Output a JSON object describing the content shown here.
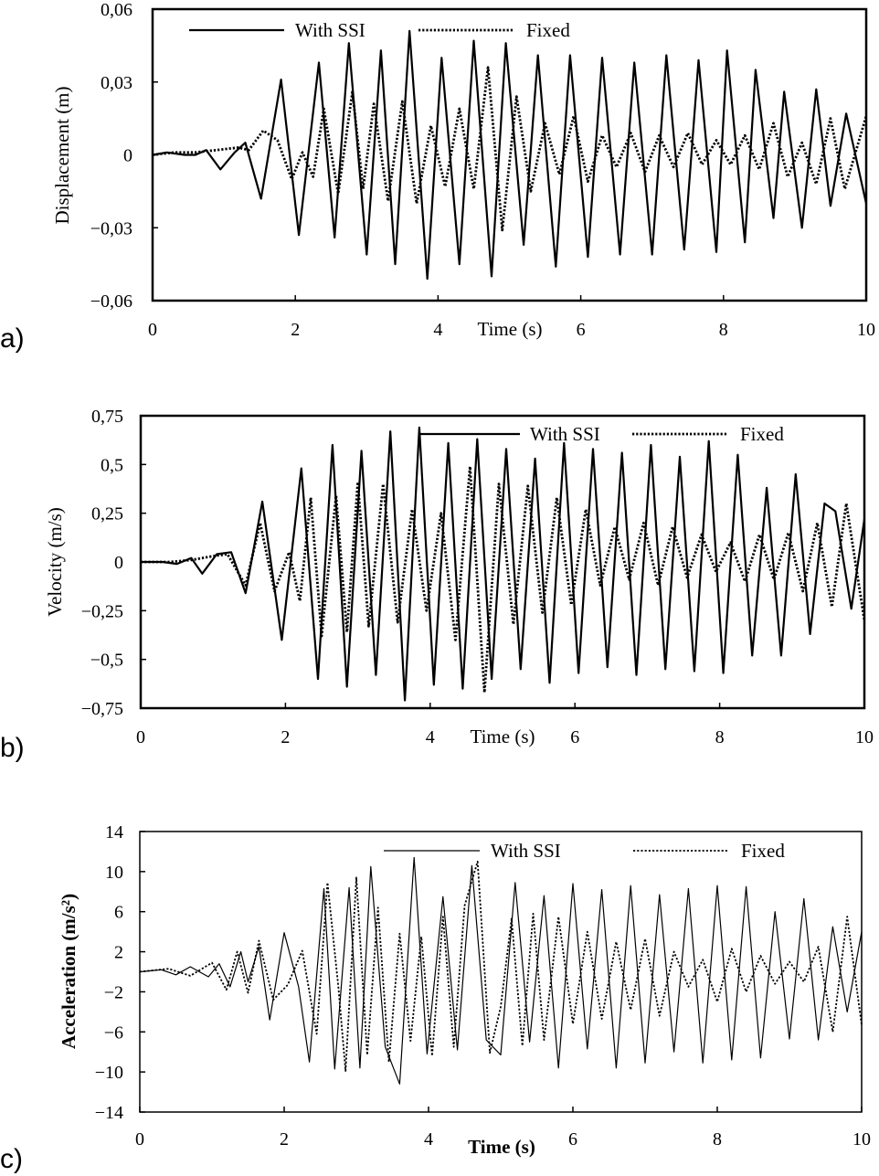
{
  "chart_data": [
    {
      "type": "line",
      "panel_label": "a)",
      "xlabel": "Time (s)",
      "ylabel": "Displacement (m)",
      "xlim": [
        0,
        10
      ],
      "ylim": [
        -0.06,
        0.06
      ],
      "x_ticks": [
        0,
        2,
        4,
        6,
        8,
        10
      ],
      "x_tick_labels": [
        "0",
        "2",
        "4",
        "6",
        "8",
        "10"
      ],
      "y_ticks": [
        -0.06,
        -0.03,
        0,
        0.03,
        0.06
      ],
      "y_tick_labels": [
        "-0,06",
        "-0,03",
        "0",
        "0,03",
        "0,06"
      ],
      "grid": false,
      "legend_position": "top",
      "series": [
        {
          "name": "With SSI",
          "style": "solid",
          "x": [
            0,
            0.2,
            0.45,
            0.6,
            0.75,
            0.95,
            1.15,
            1.3,
            1.52,
            1.8,
            2.05,
            2.33,
            2.55,
            2.75,
            3.0,
            3.2,
            3.4,
            3.6,
            3.85,
            4.05,
            4.3,
            4.5,
            4.75,
            4.95,
            5.2,
            5.4,
            5.65,
            5.85,
            6.1,
            6.3,
            6.55,
            6.75,
            7.0,
            7.2,
            7.45,
            7.65,
            7.9,
            8.05,
            8.3,
            8.45,
            8.7,
            8.85,
            9.1,
            9.3,
            9.5,
            9.72,
            10.0
          ],
          "y": [
            0,
            0.001,
            0,
            0,
            0.002,
            -0.006,
            0.001,
            0.005,
            -0.018,
            0.031,
            -0.033,
            0.038,
            -0.034,
            0.046,
            -0.041,
            0.043,
            -0.045,
            0.051,
            -0.051,
            0.04,
            -0.045,
            0.047,
            -0.05,
            0.046,
            -0.037,
            0.041,
            -0.046,
            0.041,
            -0.042,
            0.04,
            -0.041,
            0.038,
            -0.041,
            0.041,
            -0.039,
            0.039,
            -0.04,
            0.043,
            -0.036,
            0.035,
            -0.026,
            0.026,
            -0.03,
            0.027,
            -0.021,
            0.017,
            -0.02
          ]
        },
        {
          "name": "Fixed",
          "style": "dotted",
          "x": [
            0,
            0.3,
            0.6,
            0.9,
            1.2,
            1.35,
            1.55,
            1.75,
            1.95,
            2.1,
            2.25,
            2.4,
            2.6,
            2.8,
            2.95,
            3.1,
            3.3,
            3.5,
            3.7,
            3.9,
            4.1,
            4.3,
            4.5,
            4.7,
            4.9,
            5.1,
            5.3,
            5.5,
            5.7,
            5.9,
            6.1,
            6.3,
            6.5,
            6.7,
            6.9,
            7.1,
            7.3,
            7.5,
            7.7,
            7.9,
            8.1,
            8.3,
            8.5,
            8.7,
            8.9,
            9.1,
            9.3,
            9.5,
            9.7,
            10.0
          ],
          "y": [
            0,
            0.001,
            0.001,
            0.002,
            0.003,
            0.002,
            0.01,
            0.006,
            -0.01,
            0.001,
            -0.009,
            0.019,
            -0.016,
            0.026,
            -0.014,
            0.021,
            -0.019,
            0.022,
            -0.02,
            0.012,
            -0.013,
            0.019,
            -0.014,
            0.036,
            -0.031,
            0.024,
            -0.015,
            0.013,
            -0.008,
            0.016,
            -0.011,
            0.008,
            -0.005,
            0.009,
            -0.007,
            0.008,
            -0.005,
            0.009,
            -0.004,
            0.006,
            -0.004,
            0.008,
            -0.006,
            0.013,
            -0.009,
            0.005,
            -0.012,
            0.015,
            -0.014,
            0.016
          ]
        }
      ]
    },
    {
      "type": "line",
      "panel_label": "b)",
      "xlabel": "Time (s)",
      "ylabel": "Velocity (m/s)",
      "xlim": [
        0,
        10
      ],
      "ylim": [
        -0.75,
        0.75
      ],
      "x_ticks": [
        0,
        2,
        4,
        6,
        8,
        10
      ],
      "x_tick_labels": [
        "0",
        "2",
        "4",
        "6",
        "8",
        "10"
      ],
      "y_ticks": [
        -0.75,
        -0.5,
        -0.25,
        0,
        0.25,
        0.5,
        0.75
      ],
      "y_tick_labels": [
        "-0,75",
        "-0,5",
        "-0,25",
        "0",
        "0,25",
        "0,5",
        "0,75"
      ],
      "grid": false,
      "legend_position": "top-right",
      "series": [
        {
          "name": "With SSI",
          "style": "solid",
          "x": [
            0,
            0.3,
            0.5,
            0.7,
            0.85,
            1.05,
            1.25,
            1.45,
            1.68,
            1.95,
            2.22,
            2.45,
            2.65,
            2.85,
            3.05,
            3.25,
            3.45,
            3.65,
            3.85,
            4.05,
            4.25,
            4.45,
            4.65,
            4.85,
            5.05,
            5.25,
            5.45,
            5.65,
            5.85,
            6.05,
            6.25,
            6.45,
            6.65,
            6.85,
            7.05,
            7.25,
            7.45,
            7.65,
            7.85,
            8.05,
            8.25,
            8.45,
            8.65,
            8.85,
            9.05,
            9.25,
            9.45,
            9.6,
            9.82,
            10.0
          ],
          "y": [
            0,
            0,
            -0.01,
            0.02,
            -0.06,
            0.04,
            0.05,
            -0.16,
            0.31,
            -0.4,
            0.48,
            -0.6,
            0.6,
            -0.64,
            0.57,
            -0.58,
            0.67,
            -0.71,
            0.69,
            -0.63,
            0.61,
            -0.65,
            0.63,
            -0.6,
            0.58,
            -0.55,
            0.53,
            -0.62,
            0.61,
            -0.57,
            0.58,
            -0.54,
            0.56,
            -0.58,
            0.6,
            -0.55,
            0.54,
            -0.56,
            0.62,
            -0.57,
            0.55,
            -0.48,
            0.38,
            -0.48,
            0.45,
            -0.37,
            0.3,
            0.26,
            -0.24,
            0.22
          ]
        },
        {
          "name": "Fixed",
          "style": "dotted",
          "x": [
            0,
            0.4,
            0.7,
            1.0,
            1.2,
            1.45,
            1.65,
            1.85,
            2.05,
            2.2,
            2.35,
            2.5,
            2.7,
            2.85,
            3.0,
            3.15,
            3.35,
            3.55,
            3.75,
            3.95,
            4.15,
            4.35,
            4.55,
            4.75,
            4.95,
            5.15,
            5.35,
            5.55,
            5.75,
            5.95,
            6.15,
            6.35,
            6.55,
            6.75,
            6.95,
            7.15,
            7.35,
            7.55,
            7.75,
            7.95,
            8.15,
            8.35,
            8.55,
            8.75,
            8.95,
            9.15,
            9.35,
            9.55,
            9.75,
            10.0
          ],
          "y": [
            0,
            0,
            0.01,
            0.03,
            0.04,
            -0.12,
            0.2,
            -0.15,
            0.05,
            -0.2,
            0.33,
            -0.38,
            0.34,
            -0.36,
            0.41,
            -0.33,
            0.4,
            -0.31,
            0.27,
            -0.25,
            0.25,
            -0.4,
            0.49,
            -0.67,
            0.4,
            -0.32,
            0.39,
            -0.26,
            0.33,
            -0.22,
            0.27,
            -0.12,
            0.18,
            -0.09,
            0.2,
            -0.12,
            0.18,
            -0.08,
            0.14,
            -0.05,
            0.1,
            -0.1,
            0.14,
            -0.09,
            0.15,
            -0.15,
            0.2,
            -0.23,
            0.3,
            -0.3
          ]
        }
      ]
    },
    {
      "type": "line",
      "panel_label": "c)",
      "xlabel": "Time (s)",
      "ylabel": "Acceleration (m/s²)",
      "xlim": [
        0,
        10
      ],
      "ylim": [
        -14,
        14
      ],
      "x_ticks": [
        0,
        2,
        4,
        6,
        8,
        10
      ],
      "x_tick_labels": [
        "0",
        "2",
        "4",
        "6",
        "8",
        "10"
      ],
      "y_ticks": [
        -14,
        -10,
        -6,
        -2,
        2,
        6,
        10,
        14
      ],
      "y_tick_labels": [
        "-14",
        "-10",
        "-6",
        "-2",
        "2",
        "6",
        "10",
        "14"
      ],
      "grid": false,
      "legend_position": "top",
      "series": [
        {
          "name": "With SSI",
          "style": "solid",
          "x": [
            0,
            0.3,
            0.5,
            0.7,
            0.95,
            1.1,
            1.25,
            1.4,
            1.5,
            1.65,
            1.8,
            2.0,
            2.2,
            2.35,
            2.55,
            2.7,
            2.9,
            3.05,
            3.2,
            3.4,
            3.6,
            3.8,
            3.98,
            4.2,
            4.4,
            4.6,
            4.8,
            5.0,
            5.2,
            5.4,
            5.6,
            5.8,
            6.0,
            6.2,
            6.4,
            6.6,
            6.8,
            7.0,
            7.2,
            7.4,
            7.6,
            7.8,
            8.0,
            8.2,
            8.4,
            8.6,
            8.8,
            9.0,
            9.2,
            9.4,
            9.6,
            9.8,
            10.0
          ],
          "y": [
            0,
            0.2,
            -0.3,
            0.5,
            -0.5,
            0.8,
            -1.5,
            2.0,
            -1.0,
            2.5,
            -4.8,
            3.9,
            -1.5,
            -9.0,
            8.3,
            -9.7,
            8.4,
            -9.6,
            10.5,
            -7.5,
            -11.2,
            11.4,
            -8.2,
            7.5,
            -7.8,
            10.6,
            -6.8,
            -8.3,
            8.9,
            -7.0,
            7.6,
            -9.6,
            8.8,
            -7.7,
            8.2,
            -9.6,
            8.6,
            -9.1,
            7.7,
            -8.0,
            8.3,
            -9.1,
            8.6,
            -8.8,
            8.5,
            -8.6,
            6.0,
            -6.7,
            7.3,
            -6.8,
            4.5,
            -4.0,
            4.0
          ]
        },
        {
          "name": "Fixed",
          "style": "dotted",
          "x": [
            0,
            0.4,
            0.7,
            1.0,
            1.2,
            1.35,
            1.5,
            1.65,
            1.85,
            2.05,
            2.25,
            2.45,
            2.6,
            2.75,
            2.85,
            3.0,
            3.15,
            3.3,
            3.45,
            3.6,
            3.75,
            3.9,
            4.05,
            4.2,
            4.35,
            4.5,
            4.68,
            4.85,
            5.0,
            5.15,
            5.3,
            5.45,
            5.6,
            5.8,
            6.0,
            6.2,
            6.4,
            6.6,
            6.8,
            7.0,
            7.2,
            7.4,
            7.6,
            7.8,
            8.0,
            8.2,
            8.4,
            8.6,
            8.8,
            9.0,
            9.2,
            9.4,
            9.6,
            9.8,
            10.0
          ],
          "y": [
            0,
            0.3,
            -0.4,
            0.9,
            -1.8,
            2.0,
            -2.1,
            3.1,
            -2.8,
            -1.3,
            2.1,
            -6.2,
            8.9,
            -1.5,
            -9.9,
            9.4,
            -8.3,
            6.4,
            -9.0,
            3.8,
            -6.9,
            3.5,
            -8.4,
            5.5,
            -7.5,
            6.6,
            11.0,
            -8.1,
            -3.5,
            5.3,
            -7.4,
            5.8,
            -6.8,
            5.5,
            -5.2,
            4.0,
            -4.7,
            3.0,
            -3.8,
            3.3,
            -4.4,
            2.0,
            -1.5,
            1.2,
            -3.0,
            2.3,
            -2.0,
            1.6,
            -1.2,
            1.0,
            -1.0,
            2.5,
            -6.0,
            5.5,
            -5.3
          ]
        }
      ]
    }
  ]
}
